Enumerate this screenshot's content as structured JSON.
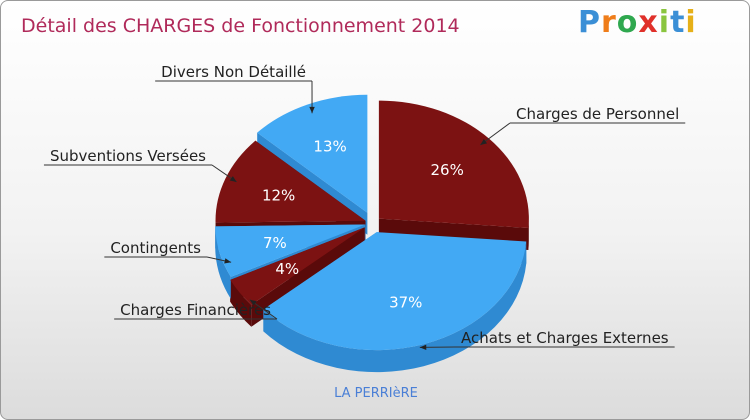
{
  "title": "Détail des CHARGES de Fonctionnement 2014",
  "logo": {
    "text": "Proxiti",
    "letter_colors": [
      "#3b8fd6",
      "#ef7d1a",
      "#2fa84f",
      "#e0302a",
      "#8ac53f",
      "#3b8fd6",
      "#e6b018"
    ]
  },
  "footer": "LA PERRIèRE",
  "colors": {
    "blue": "#42a9f4",
    "blue_side": "#2f8ad2",
    "dark_red": "#7c1212",
    "dark_red_side": "#5a0a0a",
    "title": "#b02a5a",
    "footer": "#4a7fd6"
  },
  "chart_data": {
    "type": "pie",
    "slices": [
      {
        "label": "Charges de Personnel",
        "value": 26,
        "display": "26%",
        "color": "#7c1212"
      },
      {
        "label": "Achats et Charges Externes",
        "value": 37,
        "display": "37%",
        "color": "#42a9f4"
      },
      {
        "label": "Charges Financières",
        "value": 4,
        "display": "4%",
        "color": "#7c1212"
      },
      {
        "label": "Contingents",
        "value": 7,
        "display": "7%",
        "color": "#42a9f4"
      },
      {
        "label": "Subventions Versées",
        "value": 12,
        "display": "12%",
        "color": "#7c1212"
      },
      {
        "label": "Divers Non Détaillé",
        "value": 13,
        "display": "13%",
        "color": "#42a9f4"
      }
    ]
  }
}
